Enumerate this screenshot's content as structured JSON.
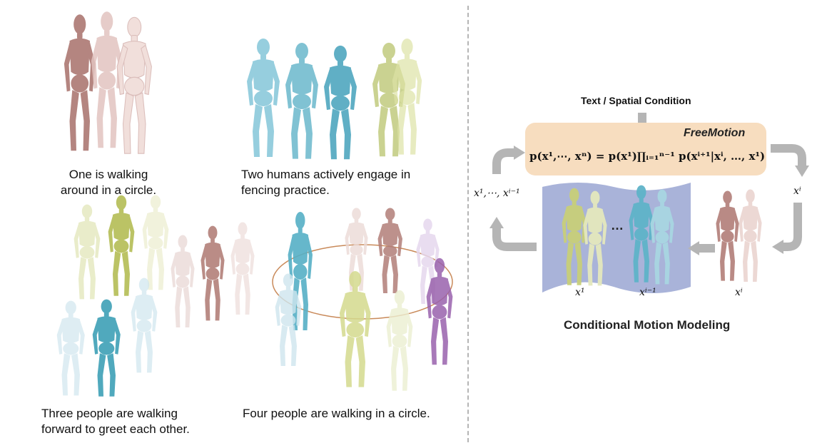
{
  "captions": {
    "panel1": [
      "One is walking",
      "around in a circle."
    ],
    "panel2": [
      "Two humans actively engage in",
      "fencing practice."
    ],
    "panel3": [
      "Three people are walking",
      "forward to greet each other."
    ],
    "panel4": [
      "Four people are walking in a circle."
    ]
  },
  "diagram": {
    "condition_label": "Text / Spatial Condition",
    "model_name": "FreeMotion",
    "formula": "p(x¹,⋯, xⁿ) = p(x¹)∏ᵢ₌₁ⁿ⁻¹ p(xⁱ⁺¹|xⁱ, …, x¹)",
    "left_label": "x¹,⋯, xⁱ⁻¹",
    "right_label": "xⁱ",
    "pool_label_1": "x¹",
    "pool_label_2": "xⁱ⁻¹",
    "pool_dots": "…",
    "new_label": "xⁱ",
    "title": "Conditional Motion Modeling"
  },
  "colors": {
    "pink": "#c9948d",
    "cyan": "#5fb4c9",
    "olive": "#c8cf7a",
    "purple": "#a872b8",
    "box_fill": "#f7ddbf",
    "panel_fill": "#a9b3d9",
    "arrow": "#b5b5b5"
  }
}
